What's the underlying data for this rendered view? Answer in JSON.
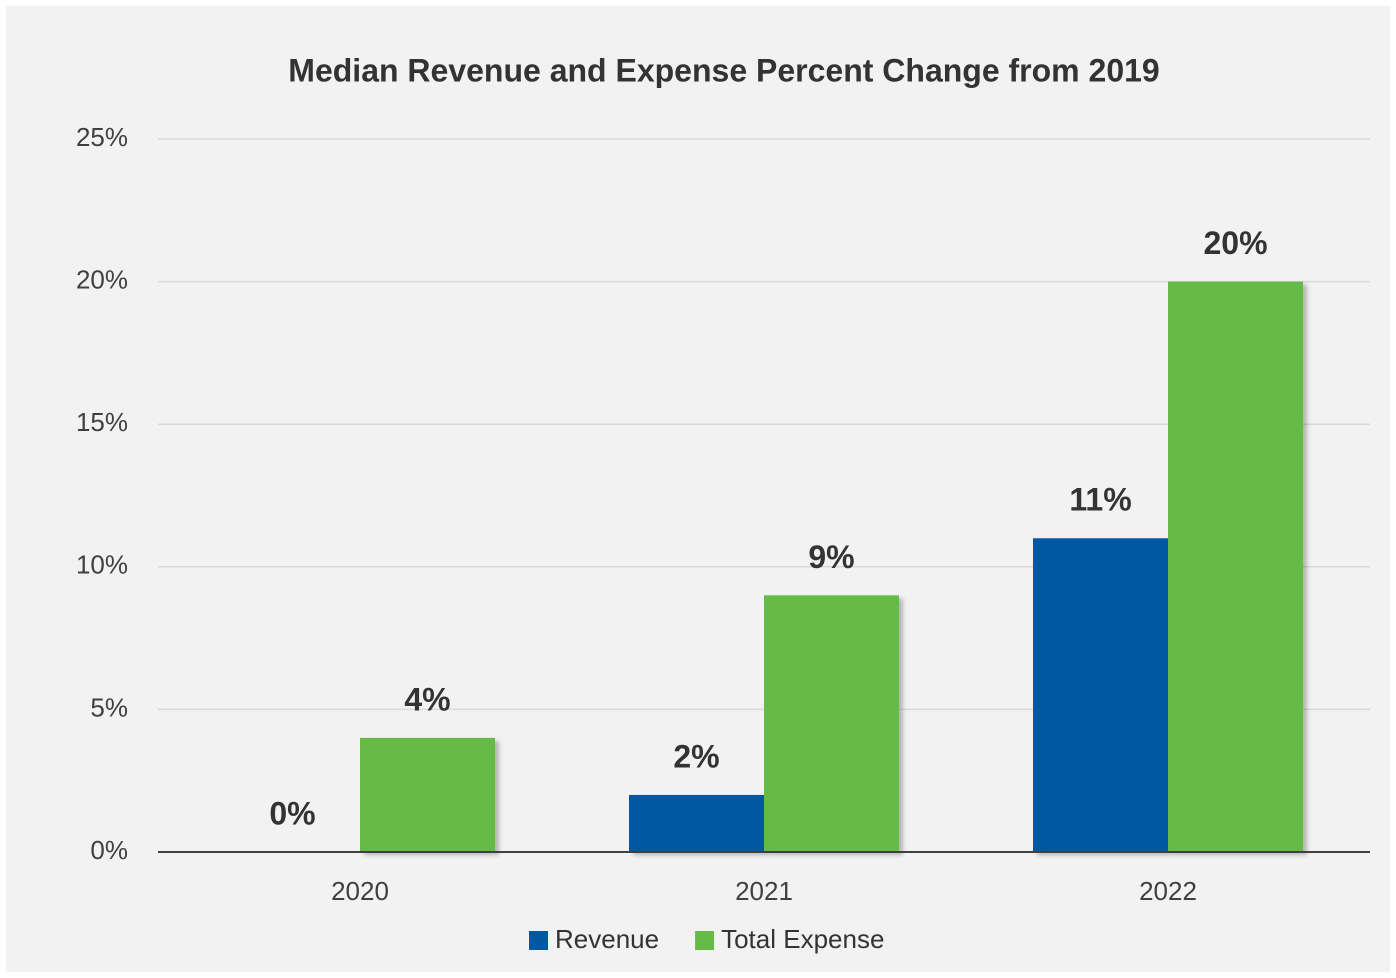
{
  "chart_data": {
    "type": "bar",
    "title": "Median Revenue and Expense Percent Change from 2019",
    "categories": [
      "2020",
      "2021",
      "2022"
    ],
    "series": [
      {
        "name": "Revenue",
        "color": "#0058a3",
        "values": [
          0,
          2,
          11
        ],
        "value_labels": [
          "0%",
          "2%",
          "11%"
        ]
      },
      {
        "name": "Total Expense",
        "color": "#66bb47",
        "values": [
          4,
          9,
          20
        ],
        "value_labels": [
          "4%",
          "9%",
          "20%"
        ]
      }
    ],
    "ylim": [
      0,
      25
    ],
    "yticks": [
      {
        "value": 0,
        "label": "0%"
      },
      {
        "value": 5,
        "label": "5%"
      },
      {
        "value": 10,
        "label": "10%"
      },
      {
        "value": 15,
        "label": "15%"
      },
      {
        "value": 20,
        "label": "20%"
      },
      {
        "value": 25,
        "label": "25%"
      }
    ],
    "grid": true,
    "legend": "bottom"
  }
}
